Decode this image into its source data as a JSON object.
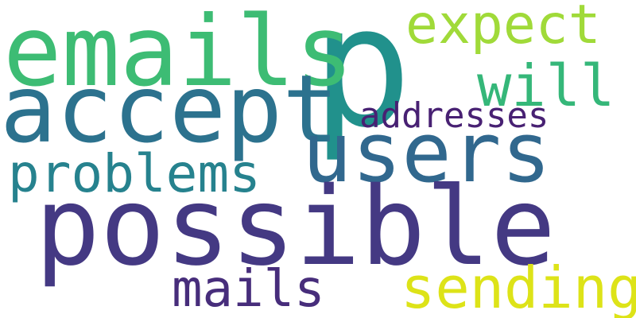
{
  "words": {
    "p": {
      "text": "p",
      "color": "#21918c"
    },
    "emails": {
      "text": "emails",
      "color": "#3dbc74"
    },
    "expect": {
      "text": "expect",
      "color": "#a0da39"
    },
    "accept": {
      "text": "accept",
      "color": "#2c728e"
    },
    "will": {
      "text": "will",
      "color": "#35b779"
    },
    "addresses": {
      "text": "addresses",
      "color": "#482173"
    },
    "users": {
      "text": "users",
      "color": "#31688e"
    },
    "problems": {
      "text": "problems",
      "color": "#26828e"
    },
    "possible": {
      "text": "possible",
      "color": "#443983"
    },
    "mails": {
      "text": "mails",
      "color": "#472d7b"
    },
    "sending": {
      "text": "sending",
      "color": "#dde318"
    }
  }
}
